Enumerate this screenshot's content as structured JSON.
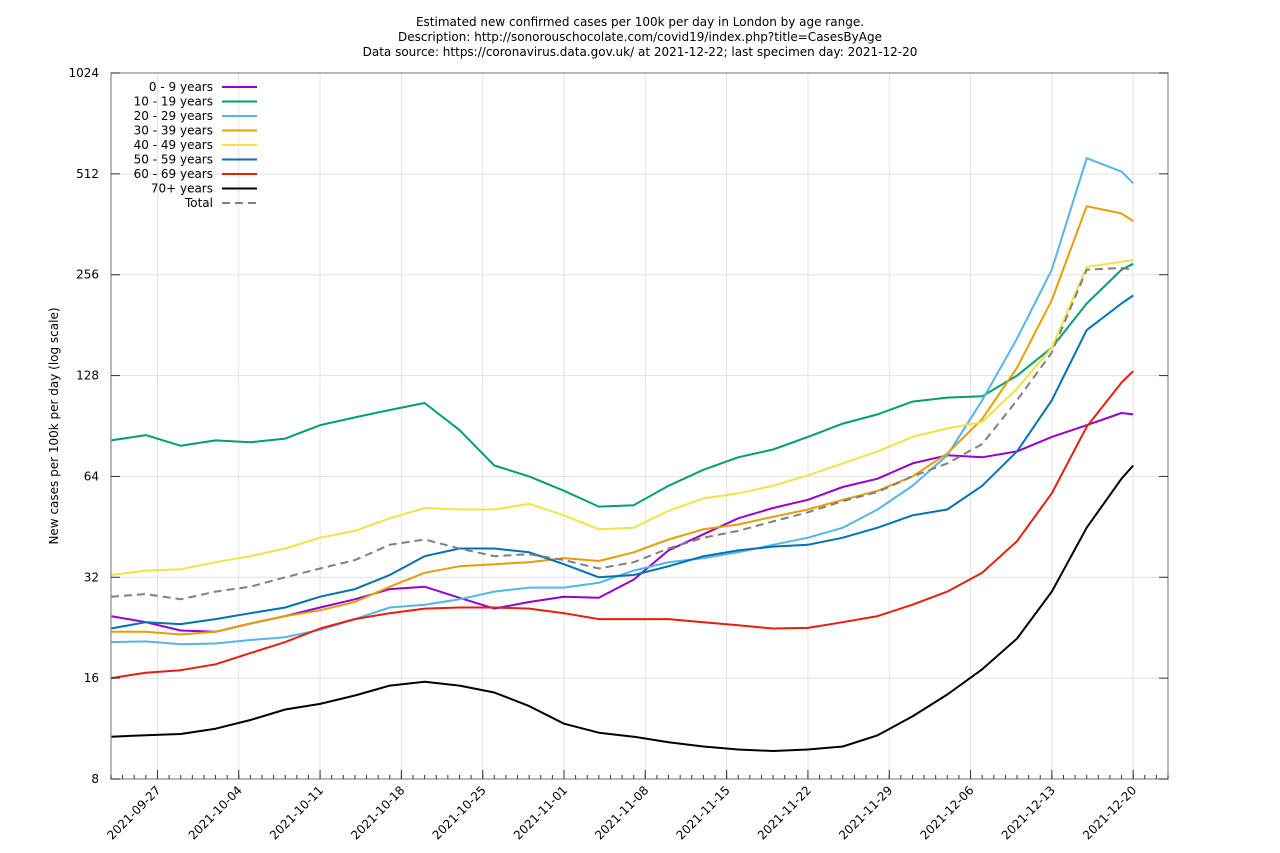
{
  "chart_data": {
    "type": "line",
    "title": [
      "Estimated new confirmed cases per 100k per day in London by age range.",
      "Description: http://sonorouschocolate.com/covid19/index.php?title=CasesByAge",
      "Data source: https://coronavirus.data.gov.uk/ at 2021-12-22; last specimen day: 2021-12-20"
    ],
    "xlabel": "",
    "ylabel": "New cases per 100k per day (log scale)",
    "yscale": "log2",
    "ylim": [
      8,
      1024
    ],
    "yticks": [
      8,
      16,
      32,
      64,
      128,
      256,
      512,
      1024
    ],
    "xlim": [
      "2021-09-23",
      "2021-12-23"
    ],
    "xticks": [
      "2021-09-27",
      "2021-10-04",
      "2021-10-11",
      "2021-10-18",
      "2021-10-25",
      "2021-11-01",
      "2021-11-08",
      "2021-11-15",
      "2021-11-22",
      "2021-11-29",
      "2021-12-06",
      "2021-12-13",
      "2021-12-20"
    ],
    "grid": true,
    "legend_position": "top-left",
    "x": [
      "2021-09-23",
      "2021-09-26",
      "2021-09-29",
      "2021-10-02",
      "2021-10-05",
      "2021-10-08",
      "2021-10-11",
      "2021-10-14",
      "2021-10-17",
      "2021-10-20",
      "2021-10-23",
      "2021-10-26",
      "2021-10-29",
      "2021-11-01",
      "2021-11-04",
      "2021-11-07",
      "2021-11-10",
      "2021-11-13",
      "2021-11-16",
      "2021-11-19",
      "2021-11-22",
      "2021-11-25",
      "2021-11-28",
      "2021-12-01",
      "2021-12-04",
      "2021-12-07",
      "2021-12-10",
      "2021-12-13",
      "2021-12-16",
      "2021-12-19",
      "2021-12-20"
    ],
    "series": [
      {
        "name": "0 - 9 years",
        "color": "#9400d3",
        "dash": false,
        "values": [
          24.5,
          23.5,
          22.2,
          22.0,
          23.3,
          24.5,
          26.0,
          27.5,
          29.5,
          30.0,
          27.8,
          25.8,
          27.0,
          28.0,
          27.8,
          31.5,
          38.5,
          43.0,
          48.0,
          51.5,
          54.5,
          59.5,
          63.0,
          70.0,
          74.0,
          73.0,
          76.0,
          84.0,
          91.0,
          99.0,
          98.0
        ]
      },
      {
        "name": "10 - 19 years",
        "color": "#009e73",
        "dash": false,
        "values": [
          82.0,
          85.0,
          79.0,
          82.0,
          81.0,
          83.0,
          91.0,
          96.0,
          101.0,
          106.0,
          88.0,
          69.0,
          64.0,
          58.0,
          52.0,
          52.5,
          60.0,
          67.0,
          73.0,
          77.0,
          84.0,
          92.0,
          98.0,
          107.0,
          110.0,
          111.0,
          128.0,
          155.0,
          210.0,
          265.0,
          276.0
        ]
      },
      {
        "name": "20 - 29 years",
        "color": "#56b4e9",
        "dash": false,
        "values": [
          20.5,
          20.6,
          20.2,
          20.3,
          20.8,
          21.2,
          22.3,
          24.0,
          26.0,
          26.5,
          27.5,
          29.0,
          29.8,
          29.8,
          30.8,
          33.5,
          35.5,
          36.5,
          38.0,
          40.0,
          42.0,
          45.0,
          51.0,
          60.0,
          74.0,
          108.0,
          165.0,
          265.0,
          570.0,
          520.0,
          480.0
        ]
      },
      {
        "name": "30 - 39 years",
        "color": "#e69f00",
        "dash": false,
        "values": [
          22.0,
          22.0,
          21.6,
          22.0,
          23.3,
          24.5,
          25.5,
          27.0,
          30.0,
          33.0,
          34.5,
          35.0,
          35.5,
          36.5,
          35.8,
          38.0,
          41.5,
          44.5,
          46.0,
          48.5,
          51.0,
          54.5,
          58.0,
          64.0,
          75.0,
          95.0,
          135.0,
          215.0,
          410.0,
          390.0,
          370.0
        ]
      },
      {
        "name": "40 - 49 years",
        "color": "#f0e442",
        "dash": false,
        "values": [
          32.5,
          33.5,
          33.8,
          35.5,
          37.0,
          39.0,
          42.0,
          44.0,
          48.0,
          51.5,
          51.0,
          51.0,
          53.0,
          49.0,
          44.5,
          45.0,
          50.5,
          55.0,
          57.0,
          60.0,
          64.5,
          70.0,
          76.0,
          84.0,
          89.0,
          93.0,
          117.0,
          155.0,
          270.0,
          280.0,
          283.0
        ]
      },
      {
        "name": "50 - 59 years",
        "color": "#0072b2",
        "dash": false,
        "values": [
          22.5,
          23.5,
          23.2,
          24.0,
          25.0,
          26.0,
          28.0,
          29.5,
          32.5,
          37.0,
          39.0,
          39.0,
          38.0,
          35.0,
          32.0,
          32.5,
          34.5,
          37.0,
          38.5,
          39.5,
          40.0,
          42.0,
          45.0,
          49.0,
          51.0,
          60.0,
          76.0,
          108.0,
          175.0,
          210.0,
          222.0
        ]
      },
      {
        "name": "60 - 69 years",
        "color": "#e51e10",
        "dash": false,
        "values": [
          16.0,
          16.6,
          16.9,
          17.6,
          19.0,
          20.5,
          22.5,
          24.0,
          25.0,
          25.8,
          26.0,
          26.0,
          25.8,
          25.0,
          24.0,
          24.0,
          24.0,
          23.5,
          23.0,
          22.5,
          22.6,
          23.5,
          24.5,
          26.5,
          29.0,
          33.0,
          41.0,
          57.0,
          90.0,
          122.0,
          132.0
        ]
      },
      {
        "name": "70+ years",
        "color": "#000000",
        "dash": false,
        "values": [
          10.7,
          10.8,
          10.9,
          11.3,
          12.0,
          12.9,
          13.4,
          14.2,
          15.2,
          15.6,
          15.2,
          14.5,
          13.2,
          11.7,
          11.0,
          10.7,
          10.3,
          10.0,
          9.8,
          9.7,
          9.8,
          10.0,
          10.8,
          12.3,
          14.3,
          17.0,
          21.0,
          29.0,
          45.0,
          63.0,
          69.0
        ]
      },
      {
        "name": "Total",
        "color": "#808080",
        "dash": true,
        "values": [
          28.0,
          28.5,
          27.5,
          29.0,
          30.0,
          32.0,
          34.0,
          36.0,
          40.0,
          41.5,
          39.0,
          37.0,
          37.5,
          36.0,
          34.0,
          35.5,
          39.0,
          42.0,
          44.0,
          47.0,
          50.0,
          54.0,
          57.5,
          64.0,
          70.0,
          80.0,
          108.0,
          150.0,
          265.0,
          268.0,
          265.0
        ]
      }
    ]
  }
}
